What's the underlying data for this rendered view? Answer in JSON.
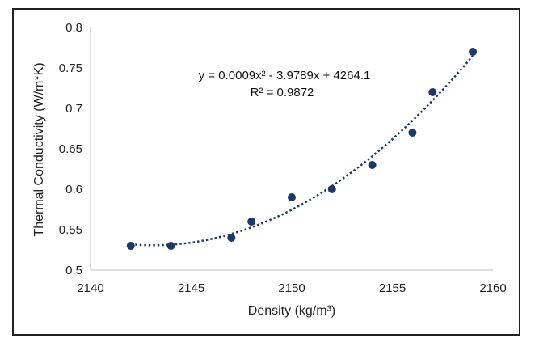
{
  "chart_data": {
    "type": "scatter",
    "title": "",
    "xlabel": "Density (kg/m³)",
    "ylabel": "Thermal Conductivity (W/m*K)",
    "xlim": [
      2140,
      2160
    ],
    "ylim": [
      0.5,
      0.8
    ],
    "xticks": [
      2140,
      2145,
      2150,
      2155,
      2160
    ],
    "yticks": [
      0.5,
      0.55,
      0.6,
      0.65,
      0.7,
      0.75,
      0.8
    ],
    "xtick_labels": [
      "2140",
      "2145",
      "2150",
      "2155",
      "2160"
    ],
    "ytick_labels": [
      "0.5",
      "0.55",
      "0.6",
      "0.65",
      "0.7",
      "0.75",
      "0.8"
    ],
    "grid": false,
    "series": [
      {
        "x": [
          2142,
          2144,
          2147,
          2148,
          2150,
          2152,
          2154,
          2156,
          2157,
          2159
        ],
        "y": [
          0.53,
          0.53,
          0.54,
          0.56,
          0.59,
          0.6,
          0.63,
          0.67,
          0.72,
          0.77
        ],
        "color": "#1f3864"
      }
    ],
    "trendline": {
      "kind": "polynomial-2",
      "style": "dotted",
      "color": "#1f3864",
      "x_range": [
        2142,
        2159
      ],
      "equation": "y = 0.0009x² - 3.9789x + 4264.1",
      "r_squared": "R² = 0.9872"
    }
  }
}
